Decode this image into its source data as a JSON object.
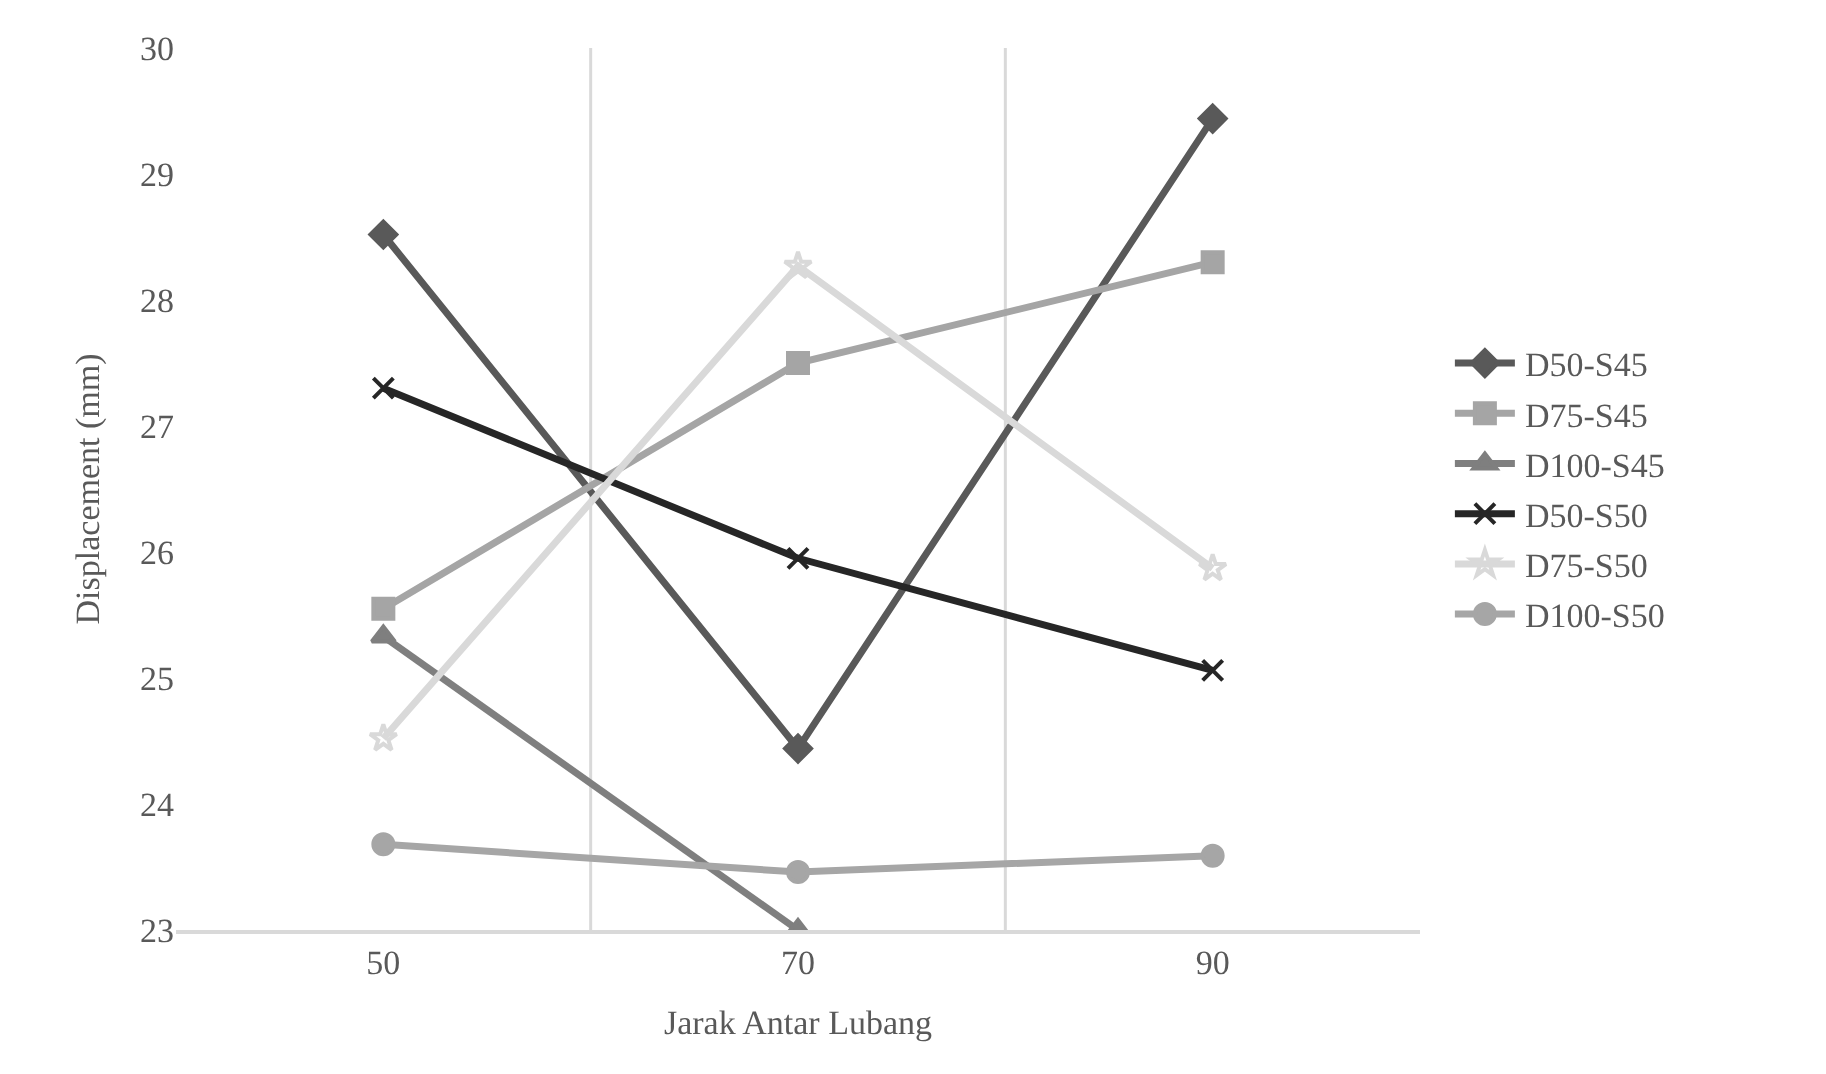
{
  "chart_data": {
    "type": "line",
    "xlabel": "Jarak Antar Lubang",
    "ylabel": "Displacement (mm)",
    "categories": [
      "50",
      "70",
      "90"
    ],
    "ylim": [
      23,
      30
    ],
    "yticks": [
      23,
      24,
      25,
      26,
      27,
      28,
      29,
      30
    ],
    "grid": "x",
    "legend": "right",
    "line_style": "solid",
    "series": [
      {
        "name": "D50-S45",
        "color": "#595959",
        "marker": "diamond",
        "values": [
          28.52,
          24.44,
          29.44
        ]
      },
      {
        "name": "D75-S45",
        "color": "#a5a5a5",
        "marker": "square",
        "values": [
          25.55,
          27.5,
          28.3
        ]
      },
      {
        "name": "D100-S45",
        "color": "#7f7f7f",
        "marker": "triangle",
        "values": [
          25.33,
          23,
          null
        ]
      },
      {
        "name": "D50-S50",
        "color": "#262626",
        "marker": "cross",
        "values": [
          27.3,
          25.95,
          25.06
        ]
      },
      {
        "name": "D75-S50",
        "color": "#d9d9d9",
        "marker": "star",
        "values": [
          24.52,
          28.27,
          25.87
        ]
      },
      {
        "name": "D100-S50",
        "color": "#a6a6a6",
        "marker": "circle",
        "values": [
          23.68,
          23.46,
          23.59
        ]
      }
    ]
  }
}
